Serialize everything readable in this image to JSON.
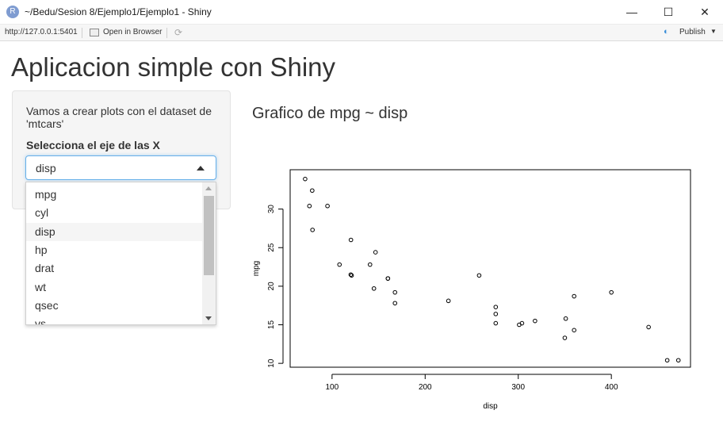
{
  "window": {
    "title": "~/Bedu/Sesion 8/Ejemplo1/Ejemplo1 - Shiny",
    "icon_letter": "R",
    "minimize": "—",
    "maximize": "☐",
    "close": "✕"
  },
  "toolbar": {
    "url": "http://127.0.0.1:5401",
    "open_in_browser": "Open in Browser",
    "publish": "Publish"
  },
  "app": {
    "title": "Aplicacion simple con Shiny",
    "description": "Vamos a crear plots con el dataset de 'mtcars'",
    "select_label": "Selecciona el eje de las X",
    "selected": "disp",
    "options": [
      "mpg",
      "cyl",
      "disp",
      "hp",
      "drat",
      "wt",
      "qsec",
      "vs"
    ]
  },
  "plot": {
    "title": "Grafico de mpg ~ disp"
  },
  "chart_data": {
    "type": "scatter",
    "xlabel": "disp",
    "ylabel": "mpg",
    "xlim": [
      55,
      485
    ],
    "ylim": [
      9.5,
      35.1
    ],
    "xticks": [
      100,
      200,
      300,
      400
    ],
    "yticks": [
      10,
      15,
      20,
      25,
      30
    ],
    "x": [
      160,
      160,
      108,
      258,
      360,
      225,
      360,
      146.7,
      140.8,
      167.6,
      167.6,
      275.8,
      275.8,
      275.8,
      472,
      460,
      440,
      78.7,
      75.7,
      71.1,
      120.1,
      318,
      304,
      350,
      400,
      79,
      120.3,
      95.1,
      351,
      145,
      301,
      121
    ],
    "y": [
      21,
      21,
      22.8,
      21.4,
      18.7,
      18.1,
      14.3,
      24.4,
      22.8,
      19.2,
      17.8,
      16.4,
      17.3,
      15.2,
      10.4,
      10.4,
      14.7,
      32.4,
      30.4,
      33.9,
      21.5,
      15.5,
      15.2,
      13.3,
      19.2,
      27.3,
      26,
      30.4,
      15.8,
      19.7,
      15,
      21.4
    ]
  }
}
